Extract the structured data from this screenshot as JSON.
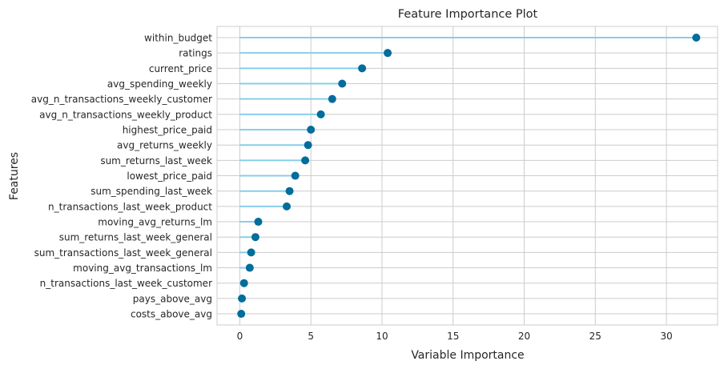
{
  "chart_data": {
    "type": "lollipop",
    "title": "Feature Importance Plot",
    "xlabel": "Variable Importance",
    "ylabel": "Features",
    "xlim": [
      -1.6,
      33.6
    ],
    "xticks": [
      0,
      5,
      10,
      15,
      20,
      25,
      30
    ],
    "grid": true,
    "colors": {
      "stem": "#87ceeb",
      "marker": "#006d9c",
      "grid": "#cccccc",
      "frame": "#cccccc",
      "text": "#262626"
    },
    "categories": [
      "within_budget",
      "ratings",
      "current_price",
      "avg_spending_weekly",
      "avg_n_transactions_weekly_customer",
      "avg_n_transactions_weekly_product",
      "highest_price_paid",
      "avg_returns_weekly",
      "sum_returns_last_week",
      "lowest_price_paid",
      "sum_spending_last_week",
      "n_transactions_last_week_product",
      "moving_avg_returns_lm",
      "sum_returns_last_week_general",
      "sum_transactions_last_week_general",
      "moving_avg_transactions_lm",
      "n_transactions_last_week_customer",
      "pays_above_avg",
      "costs_above_avg"
    ],
    "values": [
      32.1,
      10.4,
      8.6,
      7.2,
      6.5,
      5.7,
      5.0,
      4.8,
      4.6,
      3.9,
      3.5,
      3.3,
      1.3,
      1.1,
      0.8,
      0.7,
      0.3,
      0.15,
      0.1
    ]
  }
}
